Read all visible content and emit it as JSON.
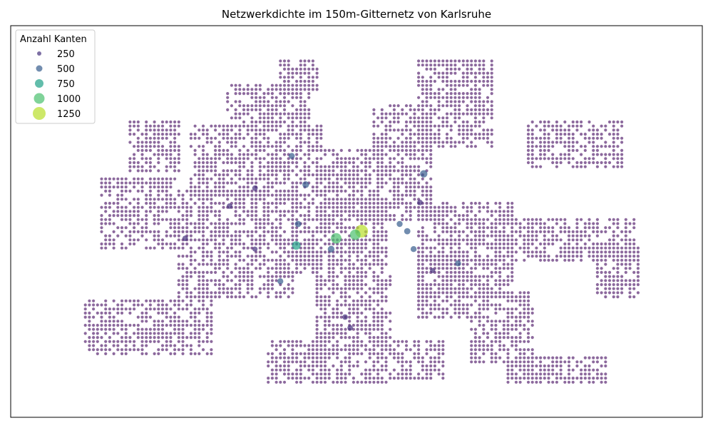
{
  "chart_data": {
    "type": "scatter",
    "title": "Netzwerkdichte im 150m-Gitternetz von Karlsruhe",
    "xlabel": "",
    "ylabel": "",
    "axes_visible": false,
    "grid": false,
    "x_range": [
      0,
      1
    ],
    "y_range": [
      0,
      1
    ],
    "marker_alpha": 0.7,
    "colormap": "viridis",
    "legend": {
      "title": "Anzahl Kanten",
      "placement": "top-left",
      "entries": [
        {
          "label": "250",
          "value": 250,
          "color": "#46327e"
        },
        {
          "label": "500",
          "value": 500,
          "color": "#365c8d"
        },
        {
          "label": "750",
          "value": 750,
          "color": "#1fa187"
        },
        {
          "label": "1000",
          "value": 1000,
          "color": "#4ac16d"
        },
        {
          "label": "1250",
          "value": 1250,
          "color": "#b8de29"
        }
      ]
    },
    "base_color": "#5b2a74",
    "grid_region_description_source": "approximate cell blocks (normalized map coords: x0,x1,y0,y1 with y from top)",
    "cell_blocks": [
      [
        0.22,
        0.4,
        0.42,
        0.72
      ],
      [
        0.1,
        0.22,
        0.38,
        0.58
      ],
      [
        0.24,
        0.45,
        0.24,
        0.44
      ],
      [
        0.3,
        0.43,
        0.12,
        0.25
      ],
      [
        0.38,
        0.44,
        0.05,
        0.14
      ],
      [
        0.4,
        0.55,
        0.44,
        0.65
      ],
      [
        0.45,
        0.62,
        0.3,
        0.5
      ],
      [
        0.53,
        0.62,
        0.18,
        0.32
      ],
      [
        0.6,
        0.72,
        0.06,
        0.3
      ],
      [
        0.6,
        0.75,
        0.45,
        0.72
      ],
      [
        0.72,
        0.94,
        0.5,
        0.62
      ],
      [
        0.77,
        0.92,
        0.22,
        0.35
      ],
      [
        0.07,
        0.27,
        0.72,
        0.87
      ],
      [
        0.44,
        0.56,
        0.66,
        0.96
      ],
      [
        0.36,
        0.45,
        0.84,
        0.96
      ],
      [
        0.56,
        0.64,
        0.84,
        0.95
      ],
      [
        0.68,
        0.78,
        0.7,
        0.9
      ],
      [
        0.74,
        0.9,
        0.88,
        0.95
      ],
      [
        0.88,
        0.95,
        0.58,
        0.72
      ],
      [
        0.14,
        0.22,
        0.22,
        0.36
      ],
      [
        0.6,
        0.68,
        0.6,
        0.78
      ]
    ],
    "highlight_points": [
      {
        "x": 0.508,
        "y": 0.53,
        "value": 1300
      },
      {
        "x": 0.468,
        "y": 0.55,
        "value": 1000
      },
      {
        "x": 0.498,
        "y": 0.54,
        "value": 1000
      },
      {
        "x": 0.405,
        "y": 0.57,
        "value": 750
      },
      {
        "x": 0.606,
        "y": 0.37,
        "value": 600
      },
      {
        "x": 0.42,
        "y": 0.4,
        "value": 500
      },
      {
        "x": 0.46,
        "y": 0.58,
        "value": 500
      },
      {
        "x": 0.58,
        "y": 0.53,
        "value": 450
      },
      {
        "x": 0.398,
        "y": 0.32,
        "value": 400
      },
      {
        "x": 0.408,
        "y": 0.51,
        "value": 450
      },
      {
        "x": 0.59,
        "y": 0.58,
        "value": 400
      },
      {
        "x": 0.38,
        "y": 0.67,
        "value": 400
      },
      {
        "x": 0.66,
        "y": 0.62,
        "value": 400
      },
      {
        "x": 0.568,
        "y": 0.51,
        "value": 400
      },
      {
        "x": 0.34,
        "y": 0.41,
        "value": 350
      },
      {
        "x": 0.3,
        "y": 0.46,
        "value": 350
      },
      {
        "x": 0.23,
        "y": 0.55,
        "value": 350
      },
      {
        "x": 0.482,
        "y": 0.77,
        "value": 350
      },
      {
        "x": 0.49,
        "y": 0.8,
        "value": 350
      },
      {
        "x": 0.6,
        "y": 0.45,
        "value": 350
      },
      {
        "x": 0.62,
        "y": 0.64,
        "value": 300
      },
      {
        "x": 0.34,
        "y": 0.58,
        "value": 300
      }
    ]
  }
}
